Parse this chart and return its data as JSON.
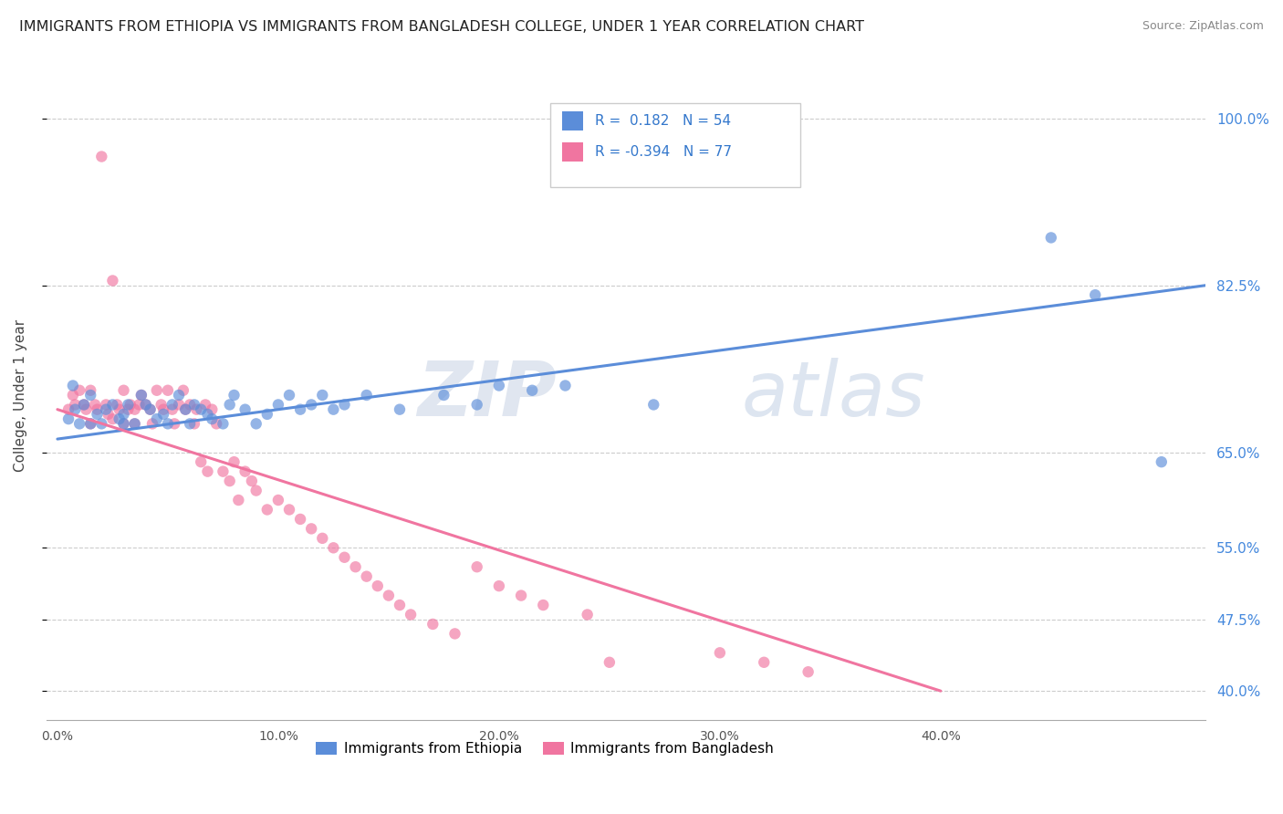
{
  "title": "IMMIGRANTS FROM ETHIOPIA VS IMMIGRANTS FROM BANGLADESH COLLEGE, UNDER 1 YEAR CORRELATION CHART",
  "source": "Source: ZipAtlas.com",
  "ylabel": "College, Under 1 year",
  "ethiopia_color": "#5b8dd9",
  "bangladesh_color": "#f075a0",
  "ethiopia_R": 0.182,
  "ethiopia_N": 54,
  "bangladesh_R": -0.394,
  "bangladesh_N": 77,
  "y_tick_values": [
    0.4,
    0.475,
    0.55,
    0.65,
    0.825,
    1.0
  ],
  "y_tick_labels": [
    "40.0%",
    "47.5%",
    "55.0%",
    "65.0%",
    "82.5%",
    "100.0%"
  ],
  "x_tick_values": [
    0.0,
    0.1,
    0.2,
    0.3,
    0.4
  ],
  "x_tick_labels": [
    "0.0%",
    "10.0%",
    "20.0%",
    "30.0%",
    "40.0%"
  ],
  "xlim": [
    -0.005,
    0.52
  ],
  "ylim": [
    0.37,
    1.05
  ],
  "eth_line_x": [
    0.0,
    0.52
  ],
  "eth_line_y": [
    0.664,
    0.825
  ],
  "ban_line_x": [
    0.0,
    0.4
  ],
  "ban_line_y": [
    0.695,
    0.4
  ],
  "ethiopia_scatter_x": [
    0.005,
    0.007,
    0.008,
    0.01,
    0.012,
    0.015,
    0.015,
    0.018,
    0.02,
    0.022,
    0.025,
    0.028,
    0.03,
    0.03,
    0.032,
    0.035,
    0.038,
    0.04,
    0.042,
    0.045,
    0.048,
    0.05,
    0.052,
    0.055,
    0.058,
    0.06,
    0.062,
    0.065,
    0.068,
    0.07,
    0.075,
    0.078,
    0.08,
    0.085,
    0.09,
    0.095,
    0.1,
    0.105,
    0.11,
    0.115,
    0.12,
    0.125,
    0.13,
    0.14,
    0.155,
    0.175,
    0.19,
    0.2,
    0.215,
    0.23,
    0.27,
    0.45,
    0.47,
    0.5
  ],
  "ethiopia_scatter_y": [
    0.685,
    0.72,
    0.695,
    0.68,
    0.7,
    0.71,
    0.68,
    0.69,
    0.68,
    0.695,
    0.7,
    0.685,
    0.68,
    0.69,
    0.7,
    0.68,
    0.71,
    0.7,
    0.695,
    0.685,
    0.69,
    0.68,
    0.7,
    0.71,
    0.695,
    0.68,
    0.7,
    0.695,
    0.69,
    0.685,
    0.68,
    0.7,
    0.71,
    0.695,
    0.68,
    0.69,
    0.7,
    0.71,
    0.695,
    0.7,
    0.71,
    0.695,
    0.7,
    0.71,
    0.695,
    0.71,
    0.7,
    0.72,
    0.715,
    0.72,
    0.7,
    0.875,
    0.815,
    0.64
  ],
  "bangladesh_scatter_x": [
    0.005,
    0.007,
    0.008,
    0.01,
    0.012,
    0.013,
    0.015,
    0.015,
    0.017,
    0.018,
    0.02,
    0.022,
    0.023,
    0.025,
    0.025,
    0.027,
    0.028,
    0.03,
    0.03,
    0.032,
    0.033,
    0.035,
    0.035,
    0.037,
    0.038,
    0.04,
    0.042,
    0.043,
    0.045,
    0.047,
    0.048,
    0.05,
    0.052,
    0.053,
    0.055,
    0.057,
    0.058,
    0.06,
    0.062,
    0.063,
    0.065,
    0.067,
    0.068,
    0.07,
    0.072,
    0.075,
    0.078,
    0.08,
    0.082,
    0.085,
    0.088,
    0.09,
    0.095,
    0.1,
    0.105,
    0.11,
    0.115,
    0.12,
    0.125,
    0.13,
    0.135,
    0.14,
    0.145,
    0.15,
    0.155,
    0.16,
    0.17,
    0.18,
    0.19,
    0.2,
    0.21,
    0.22,
    0.24,
    0.25,
    0.3,
    0.32,
    0.34
  ],
  "bangladesh_scatter_y": [
    0.695,
    0.71,
    0.7,
    0.715,
    0.7,
    0.695,
    0.715,
    0.68,
    0.7,
    0.695,
    0.96,
    0.7,
    0.69,
    0.83,
    0.685,
    0.7,
    0.695,
    0.715,
    0.68,
    0.695,
    0.7,
    0.68,
    0.695,
    0.7,
    0.71,
    0.7,
    0.695,
    0.68,
    0.715,
    0.7,
    0.695,
    0.715,
    0.695,
    0.68,
    0.7,
    0.715,
    0.695,
    0.7,
    0.68,
    0.695,
    0.64,
    0.7,
    0.63,
    0.695,
    0.68,
    0.63,
    0.62,
    0.64,
    0.6,
    0.63,
    0.62,
    0.61,
    0.59,
    0.6,
    0.59,
    0.58,
    0.57,
    0.56,
    0.55,
    0.54,
    0.53,
    0.52,
    0.51,
    0.5,
    0.49,
    0.48,
    0.47,
    0.46,
    0.53,
    0.51,
    0.5,
    0.49,
    0.48,
    0.43,
    0.44,
    0.43,
    0.42
  ]
}
